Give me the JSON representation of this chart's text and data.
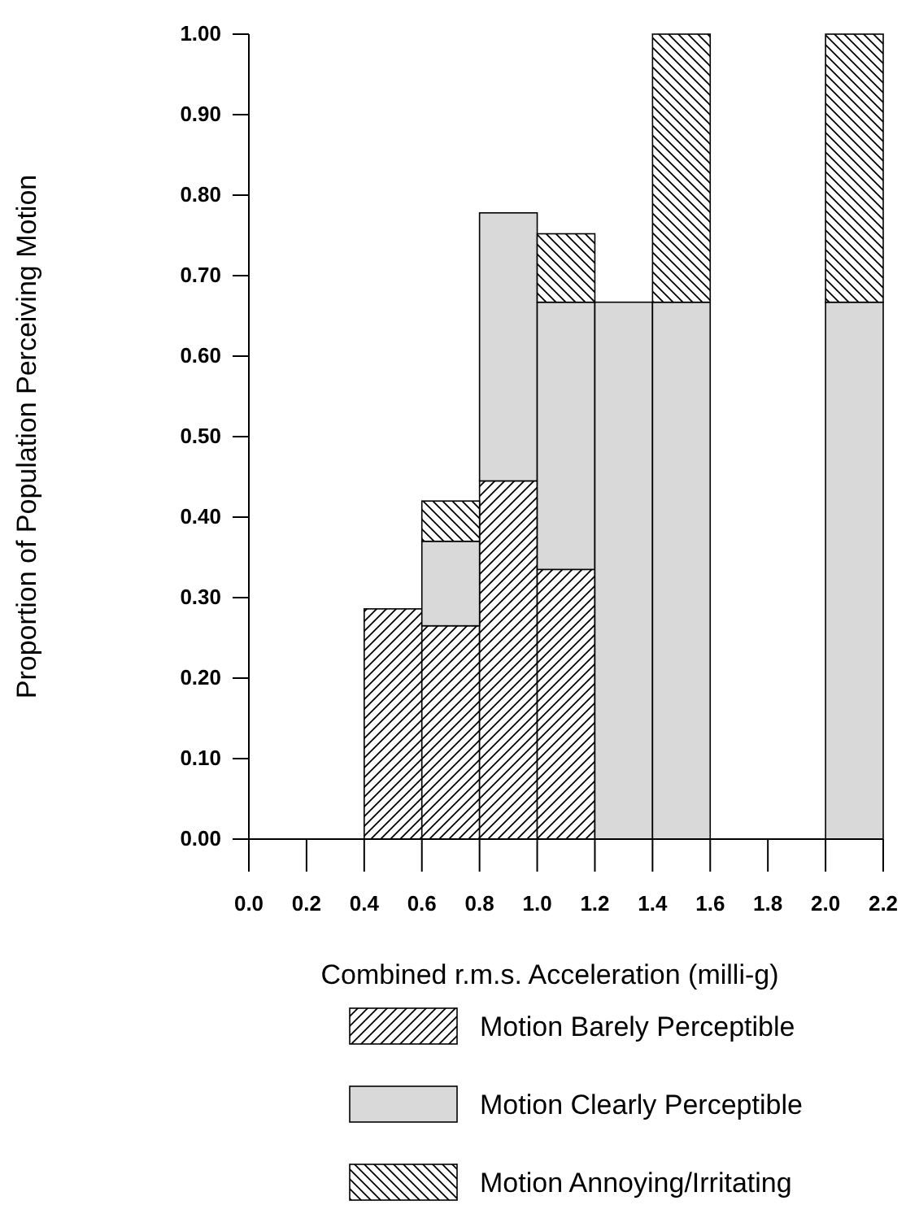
{
  "chart_data": {
    "type": "bar",
    "stacked": true,
    "xlabel": "Combined r.m.s.  Acceleration (milli-g)",
    "ylabel": "Proportion of Population Perceiving Motion",
    "x": [
      0.1,
      0.3,
      0.5,
      0.7,
      0.9,
      1.1,
      1.3,
      1.5,
      1.7,
      1.9,
      2.1
    ],
    "series": [
      {
        "name": "Motion Barely Perceptible",
        "color": "#000000",
        "values": [
          0,
          0,
          0.286,
          0.265,
          0.445,
          0.335,
          0,
          0,
          0,
          0,
          0
        ]
      },
      {
        "name": "Motion Clearly Perceptible",
        "color": "#d9d9d9",
        "values": [
          0,
          0,
          0,
          0.105,
          0.333,
          0.332,
          0.667,
          0.667,
          0,
          0,
          0.667
        ]
      },
      {
        "name": "Motion Annoying/Irritating",
        "color": "#000000",
        "values": [
          0,
          0,
          0,
          0.05,
          0,
          0.085,
          0,
          0.333,
          0,
          0,
          0.333
        ]
      }
    ],
    "xlim": [
      0,
      2.2
    ],
    "xticks": [
      {
        "value": 0,
        "label": "0.0"
      },
      0.2,
      0.4,
      0.6,
      0.8,
      {
        "value": 1,
        "label": "1.0"
      },
      1.2,
      1.4,
      1.6,
      1.8,
      {
        "value": 2,
        "label": "2.0"
      },
      2.2
    ],
    "ylim": [
      0,
      1
    ],
    "yticks": [
      {
        "value": 0,
        "label": "0.00"
      },
      {
        "value": 0.1,
        "label": "0.10"
      },
      {
        "value": 0.2,
        "label": "0.20"
      },
      {
        "value": 0.3,
        "label": "0.30"
      },
      {
        "value": 0.4,
        "label": "0.40"
      },
      {
        "value": 0.5,
        "label": "0.50"
      },
      {
        "value": 0.6,
        "label": "0.60"
      },
      {
        "value": 0.7,
        "label": "0.70"
      },
      {
        "value": 0.8,
        "label": "0.80"
      },
      {
        "value": 0.9,
        "label": "0.90"
      },
      {
        "value": 1,
        "label": "1.00"
      }
    ],
    "grid": false,
    "legend": "bottom"
  }
}
